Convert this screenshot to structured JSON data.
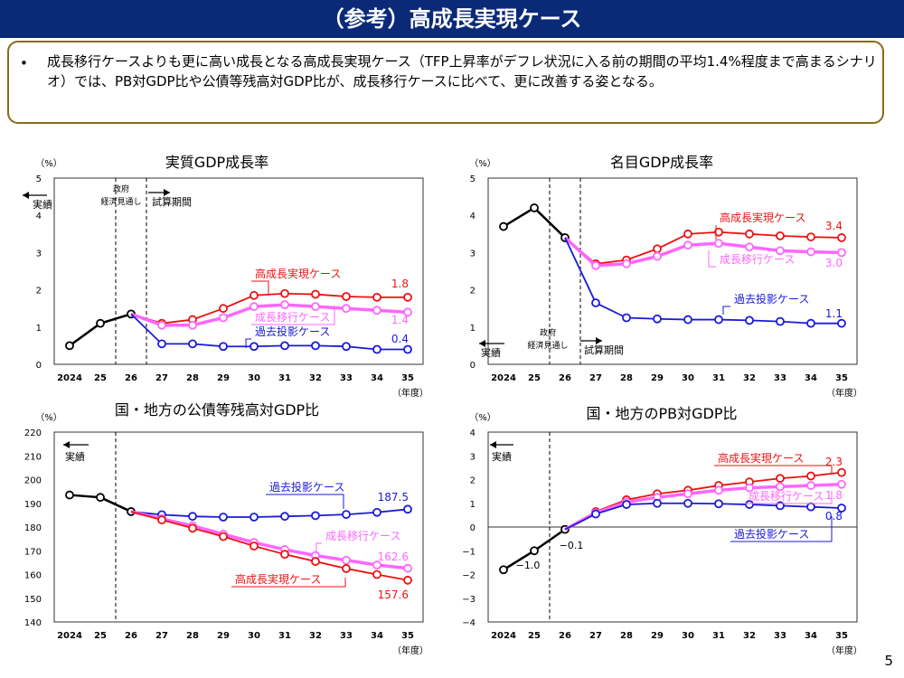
{
  "page": {
    "title": "（参考）高成長実現ケース",
    "bullet": "•",
    "summary": "成長移行ケースよりも更に高い成長となる高成長実現ケース（TFP上昇率がデフレ状況に入る前の期間の平均1.4%程度まで高まるシナリオ）では、PB対GDP比や公債等残高対GDP比が、成長移行ケースに比べて、更に改善する姿となる。",
    "page_number": "5"
  },
  "colors": {
    "actual": "#000000",
    "high": "#ee1111",
    "transition": "#ff66ff",
    "past": "#1a1adb"
  },
  "chart_data": [
    {
      "type": "line",
      "title": "実質GDP成長率",
      "unit": "（%）",
      "xunit": "（年度）",
      "categories": [
        "2024",
        "25",
        "26",
        "27",
        "28",
        "29",
        "30",
        "31",
        "32",
        "33",
        "34",
        "35"
      ],
      "ylim": [
        0,
        5
      ],
      "yticks": [
        0,
        1,
        2,
        3,
        4,
        5
      ],
      "annotations": {
        "actual": "実績",
        "outlook1": "政府",
        "outlook2": "経済見通し",
        "trial": "試算期間"
      },
      "series": [
        {
          "key": "actual",
          "values": [
            0.5,
            1.1,
            1.35,
            null,
            null,
            null,
            null,
            null,
            null,
            null,
            null,
            null
          ]
        },
        {
          "key": "high",
          "name": "高成長実現ケース",
          "end_label": "1.8",
          "values": [
            null,
            null,
            1.35,
            1.1,
            1.2,
            1.5,
            1.85,
            1.9,
            1.88,
            1.82,
            1.8,
            1.8
          ]
        },
        {
          "key": "transition",
          "name": "成長移行ケース",
          "end_label": "1.4",
          "values": [
            null,
            null,
            1.35,
            1.05,
            1.05,
            1.25,
            1.55,
            1.6,
            1.55,
            1.5,
            1.45,
            1.4
          ]
        },
        {
          "key": "past",
          "name": "過去投影ケース",
          "end_label": "0.4",
          "values": [
            null,
            null,
            1.35,
            0.55,
            0.55,
            0.48,
            0.48,
            0.5,
            0.5,
            0.48,
            0.4,
            0.4
          ]
        }
      ]
    },
    {
      "type": "line",
      "title": "名目GDP成長率",
      "unit": "（%）",
      "xunit": "（年度）",
      "categories": [
        "2024",
        "25",
        "26",
        "27",
        "28",
        "29",
        "30",
        "31",
        "32",
        "33",
        "34",
        "35"
      ],
      "ylim": [
        0,
        5
      ],
      "yticks": [
        0,
        1,
        2,
        3,
        4,
        5
      ],
      "annotations": {
        "actual": "実績",
        "outlook1": "政府",
        "outlook2": "経済見通し",
        "trial": "試算期間"
      },
      "series": [
        {
          "key": "actual",
          "values": [
            3.7,
            4.2,
            3.4,
            null,
            null,
            null,
            null,
            null,
            null,
            null,
            null,
            null
          ]
        },
        {
          "key": "high",
          "name": "高成長実現ケース",
          "end_label": "3.4",
          "values": [
            null,
            null,
            3.4,
            2.7,
            2.8,
            3.1,
            3.5,
            3.55,
            3.5,
            3.45,
            3.42,
            3.4
          ]
        },
        {
          "key": "transition",
          "name": "成長移行ケース",
          "end_label": "3.0",
          "values": [
            null,
            null,
            3.4,
            2.65,
            2.7,
            2.9,
            3.2,
            3.25,
            3.15,
            3.05,
            3.02,
            3.0
          ]
        },
        {
          "key": "past",
          "name": "過去投影ケース",
          "end_label": "1.1",
          "values": [
            null,
            null,
            3.4,
            1.65,
            1.25,
            1.22,
            1.2,
            1.2,
            1.18,
            1.15,
            1.1,
            1.1
          ]
        }
      ]
    },
    {
      "type": "line",
      "title": "国・地方の公債等残高対GDP比",
      "unit": "（%）",
      "xunit": "（年度）",
      "categories": [
        "2024",
        "25",
        "26",
        "27",
        "28",
        "29",
        "30",
        "31",
        "32",
        "33",
        "34",
        "35"
      ],
      "ylim": [
        140,
        220
      ],
      "yticks": [
        140,
        150,
        160,
        170,
        180,
        190,
        200,
        210,
        220
      ],
      "annotations": {
        "actual": "実績"
      },
      "series": [
        {
          "key": "actual",
          "values": [
            193.5,
            192.5,
            186.5,
            null,
            null,
            null,
            null,
            null,
            null,
            null,
            null,
            null
          ]
        },
        {
          "key": "past",
          "name": "過去投影ケース",
          "end_label": "187.5",
          "values": [
            null,
            null,
            186.5,
            185.2,
            184.5,
            184.2,
            184.2,
            184.5,
            184.8,
            185.3,
            186.2,
            187.5
          ]
        },
        {
          "key": "transition",
          "name": "成長移行ケース",
          "end_label": "162.6",
          "values": [
            null,
            null,
            186.5,
            183.5,
            180.5,
            177,
            173.5,
            170.5,
            168,
            166,
            164,
            162.6
          ]
        },
        {
          "key": "high",
          "name": "高成長実現ケース",
          "end_label": "157.6",
          "values": [
            null,
            null,
            186.5,
            183,
            179.5,
            176,
            172,
            168.5,
            165.5,
            162.5,
            160,
            157.6
          ]
        }
      ]
    },
    {
      "type": "line",
      "title": "国・地方のPB対GDP比",
      "unit": "（%）",
      "xunit": "（年度）",
      "categories": [
        "2024",
        "25",
        "26",
        "27",
        "28",
        "29",
        "30",
        "31",
        "32",
        "33",
        "34",
        "35"
      ],
      "ylim": [
        -4,
        4
      ],
      "yticks": [
        -4,
        -3,
        -2,
        -1,
        0,
        1,
        2,
        3,
        4
      ],
      "annotations": {
        "actual": "実績",
        "point_2024": "−1.0",
        "point_26": "−0.1"
      },
      "series": [
        {
          "key": "actual",
          "values": [
            -1.8,
            -1.0,
            -0.1,
            null,
            null,
            null,
            null,
            null,
            null,
            null,
            null,
            null
          ]
        },
        {
          "key": "high",
          "name": "高成長実現ケース",
          "end_label": "2.3",
          "values": [
            null,
            null,
            -0.1,
            0.65,
            1.15,
            1.4,
            1.55,
            1.75,
            1.9,
            2.05,
            2.15,
            2.3
          ]
        },
        {
          "key": "transition",
          "name": "成長移行ケース",
          "end_label": "1.8",
          "values": [
            null,
            null,
            -0.1,
            0.6,
            1.05,
            1.25,
            1.4,
            1.55,
            1.65,
            1.7,
            1.75,
            1.8
          ]
        },
        {
          "key": "past",
          "name": "過去投影ケース",
          "end_label": "0.8",
          "values": [
            null,
            null,
            -0.1,
            0.55,
            0.95,
            1.0,
            1.0,
            0.98,
            0.95,
            0.9,
            0.85,
            0.8
          ]
        }
      ]
    }
  ]
}
